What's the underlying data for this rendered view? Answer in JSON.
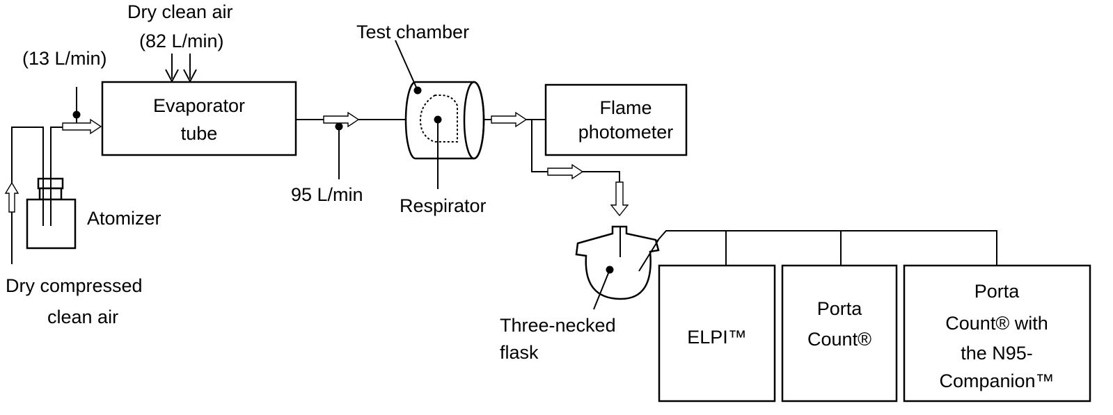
{
  "labels": {
    "dry_clean_air_1": "Dry clean air",
    "dry_clean_air_2": "(82 L/min)",
    "flow_13": "(13 L/min)",
    "test_chamber": "Test chamber",
    "evaporator_1": "Evaporator",
    "evaporator_2": "tube",
    "flame_1": "Flame",
    "flame_2": "photometer",
    "flow_95": "95 L/min",
    "respirator": "Respirator",
    "atomizer": "Atomizer",
    "compressed_1": "Dry compressed",
    "compressed_2": "clean air",
    "flask_1": "Three-necked",
    "flask_2": "flask",
    "elpi": "ELPI™",
    "porta_1": "Porta",
    "porta_2": "Count®",
    "porta_n95_1": "Porta",
    "porta_n95_2": "Count® with",
    "porta_n95_3": "the N95-",
    "porta_n95_4": "Companion™"
  }
}
